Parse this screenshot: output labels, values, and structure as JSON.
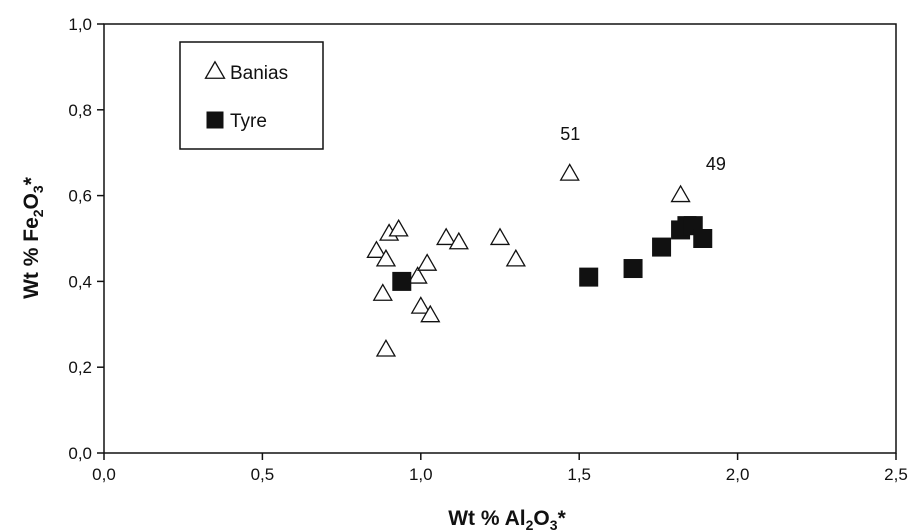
{
  "chart_data": {
    "type": "scatter",
    "xlabel": {
      "prefix": "Wt % Al",
      "sub": "2",
      "mid": "O",
      "sub2": "3",
      "suffix": "*"
    },
    "ylabel": {
      "prefix": "Wt % Fe",
      "sub": "2",
      "mid": "O",
      "sub2": "3",
      "suffix": "*"
    },
    "xlim": [
      0,
      2.5
    ],
    "ylim": [
      0,
      1.0
    ],
    "x_ticks": [
      0,
      0.5,
      1.0,
      1.5,
      2.0,
      2.5
    ],
    "x_tick_labels": [
      "0,0",
      "0,5",
      "1,0",
      "1,5",
      "2,0",
      "2,5"
    ],
    "y_ticks": [
      0,
      0.2,
      0.4,
      0.6,
      0.8,
      1.0
    ],
    "y_tick_labels": [
      "0,0",
      "0,2",
      "0,4",
      "0,6",
      "0,8",
      "1,0"
    ],
    "grid": false,
    "legend_position": "top-left",
    "series": [
      {
        "name": "Banias",
        "marker": "open-triangle",
        "color": "#111111",
        "points": [
          {
            "x": 0.86,
            "y": 0.47
          },
          {
            "x": 0.89,
            "y": 0.45
          },
          {
            "x": 0.9,
            "y": 0.51
          },
          {
            "x": 0.93,
            "y": 0.52
          },
          {
            "x": 0.88,
            "y": 0.37
          },
          {
            "x": 0.89,
            "y": 0.24
          },
          {
            "x": 0.99,
            "y": 0.41
          },
          {
            "x": 1.0,
            "y": 0.34
          },
          {
            "x": 1.02,
            "y": 0.44
          },
          {
            "x": 1.03,
            "y": 0.32
          },
          {
            "x": 1.08,
            "y": 0.5
          },
          {
            "x": 1.12,
            "y": 0.49
          },
          {
            "x": 1.25,
            "y": 0.5
          },
          {
            "x": 1.3,
            "y": 0.45
          },
          {
            "x": 1.47,
            "y": 0.65
          },
          {
            "x": 1.82,
            "y": 0.6
          }
        ]
      },
      {
        "name": "Tyre",
        "marker": "filled-square",
        "color": "#111111",
        "points": [
          {
            "x": 0.94,
            "y": 0.4
          },
          {
            "x": 1.53,
            "y": 0.41
          },
          {
            "x": 1.67,
            "y": 0.43
          },
          {
            "x": 1.76,
            "y": 0.48
          },
          {
            "x": 1.82,
            "y": 0.52
          },
          {
            "x": 1.84,
            "y": 0.53
          },
          {
            "x": 1.86,
            "y": 0.53
          },
          {
            "x": 1.89,
            "y": 0.5
          }
        ]
      }
    ],
    "annotations": [
      {
        "text": "51",
        "x": 1.44,
        "y": 0.73
      },
      {
        "text": "49",
        "x": 1.9,
        "y": 0.66
      }
    ]
  }
}
